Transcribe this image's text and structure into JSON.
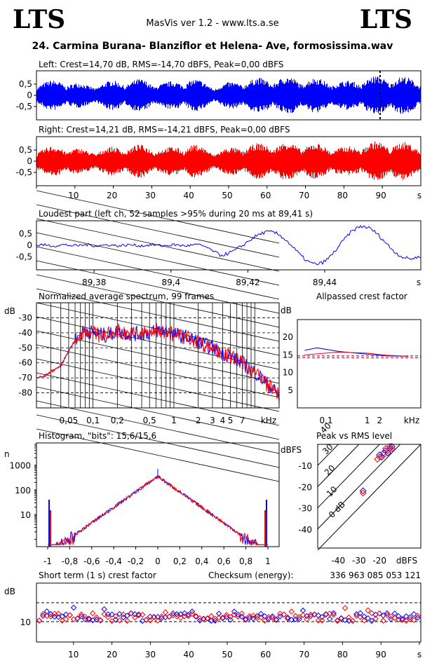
{
  "header": {
    "logo_left": "LTS",
    "logo_right": "LTS",
    "app_title": "MasVis ver 1.2 - www.lts.a.se",
    "file_title": "24. Carmina Burana- Blanziflor et Helena- Ave, formosissima.wav"
  },
  "colors": {
    "left": "#0000ff",
    "right": "#ff0000"
  },
  "chart_data": [
    {
      "id": "left",
      "type": "area",
      "title": "Left: Crest=14,70 dB, RMS=-14,70 dBFS, Peak=0,00 dBFS",
      "yticks": [
        "0,5",
        "0",
        "-0,5"
      ],
      "ylim": [
        -1,
        1
      ],
      "xlim": [
        0,
        100
      ],
      "marker_at_s": 89.41,
      "series": [
        {
          "envelope": [
            0.62,
            0.71,
            0.48,
            0.68,
            0.74,
            0.58,
            0.8,
            0.46,
            0.72,
            0.82,
            0.84,
            0.78,
            0.63,
            0.86,
            0.9,
            0.74
          ]
        }
      ]
    },
    {
      "id": "right",
      "type": "area",
      "title": "Right: Crest=14,21 dB, RMS=-14,21 dBFS, Peak=0,00 dBFS",
      "yticks": [
        "0,5",
        "0",
        "-0,5"
      ],
      "ylim": [
        -1,
        1
      ],
      "xlim": [
        0,
        100
      ],
      "xticks": [
        "10",
        "20",
        "30",
        "40",
        "50",
        "60",
        "70",
        "80",
        "90",
        "s"
      ],
      "series": [
        {
          "envelope": [
            0.6,
            0.72,
            0.5,
            0.66,
            0.76,
            0.6,
            0.82,
            0.48,
            0.74,
            0.84,
            0.86,
            0.8,
            0.64,
            0.88,
            0.92,
            0.76
          ]
        }
      ]
    },
    {
      "id": "loudest",
      "type": "line",
      "title": "Loudest part (left  ch, 52 samples >95% during 20 ms at 89,41 s)",
      "yticks": [
        "0,5",
        "0",
        "-0,5"
      ],
      "ylim": [
        -1,
        1
      ],
      "xlim": [
        89.365,
        89.465
      ],
      "xticks": [
        "89,38",
        "89,4",
        "89,42",
        "89,44",
        "s"
      ],
      "xtick_values": [
        89.38,
        89.4,
        89.42,
        89.44
      ]
    },
    {
      "id": "spectrum",
      "type": "line",
      "title": "Normalized average spectrum, 99 frames",
      "ylabel": "dB",
      "yticks": [
        "-30",
        "-40",
        "-50",
        "-60",
        "-70",
        "-80"
      ],
      "ylim": [
        -90,
        -20
      ],
      "xlim_khz": [
        0.02,
        20
      ],
      "xticks": [
        "0,05",
        "0,1",
        "0,2",
        "0,5",
        "1",
        "2",
        "3",
        "4",
        "5",
        "7"
      ],
      "xtick_values": [
        0.05,
        0.1,
        0.2,
        0.5,
        1,
        2,
        3,
        4,
        5,
        7
      ],
      "xunit": "kHz",
      "series": [
        {
          "x": [
            0.02,
            0.025,
            0.03,
            0.04,
            0.05,
            0.06,
            0.08,
            0.1,
            0.15,
            0.2,
            0.3,
            0.5,
            0.7,
            1,
            1.5,
            2,
            3,
            5,
            7,
            10,
            15,
            20
          ],
          "y": [
            -70,
            -69,
            -66,
            -62,
            -52,
            -45,
            -38,
            -40,
            -42,
            -39,
            -41,
            -40,
            -38,
            -41,
            -43,
            -46,
            -50,
            -56,
            -60,
            -66,
            -75,
            -82
          ]
        }
      ]
    },
    {
      "id": "allpass",
      "type": "line",
      "title": "Allpassed crest factor",
      "ylabel": "dB",
      "yticks": [
        "20",
        "15",
        "10",
        "5"
      ],
      "ylim": [
        0,
        25
      ],
      "xticks": [
        "0,1",
        "1",
        "2",
        "kHz"
      ],
      "series": [
        {
          "name_color": "left",
          "x": [
            0.03,
            0.06,
            0.2,
            1,
            3,
            10
          ],
          "y": [
            16.3,
            17.0,
            16.0,
            15.2,
            14.7,
            14.6
          ]
        },
        {
          "name_color": "right",
          "x": [
            0.03,
            0.06,
            0.2,
            1,
            3,
            10
          ],
          "y": [
            15.0,
            15.3,
            15.8,
            15.5,
            14.9,
            14.6
          ]
        }
      ],
      "ref_levels": [
        14.7,
        14.2
      ]
    },
    {
      "id": "histogram",
      "type": "bar",
      "title": "Histogram, \"bits\": 15,6/15,6",
      "ylabel": "n",
      "yticks": [
        "1000",
        "100",
        "10"
      ],
      "xticks": [
        "-1",
        "-0,8",
        "-0,6",
        "-0,4",
        "-0,2",
        "0",
        "0,2",
        "0,4",
        "0,6",
        "0,8",
        "1"
      ],
      "xtick_values": [
        -1,
        -0.8,
        -0.6,
        -0.4,
        -0.2,
        0,
        0.2,
        0.4,
        0.6,
        0.8,
        1
      ]
    },
    {
      "id": "peak_rms",
      "type": "scatter",
      "title": "Peak vs RMS level",
      "ylabel": "dBFS",
      "yticks": [
        "-10",
        "-20",
        "-30",
        "-40"
      ],
      "xticks": [
        "-40",
        "-30",
        "-20",
        "dBFS"
      ],
      "diag_labels": [
        "40",
        "30",
        "20",
        "10",
        "0 dB"
      ],
      "series": [
        {
          "name_color": "left",
          "points": [
            [
              -20,
              -5
            ],
            [
              -18,
              -4
            ],
            [
              -17,
              -3
            ],
            [
              -15,
              -2
            ],
            [
              -16,
              -4
            ],
            [
              -14,
              -1
            ],
            [
              -19,
              -6
            ],
            [
              -28,
              -22
            ]
          ]
        },
        {
          "name_color": "right",
          "points": [
            [
              -20,
              -6
            ],
            [
              -18,
              -5
            ],
            [
              -16,
              -3
            ],
            [
              -15,
              -1
            ],
            [
              -17,
              -2
            ],
            [
              -14,
              -2
            ],
            [
              -21,
              -7
            ],
            [
              -28,
              -23
            ]
          ]
        }
      ]
    },
    {
      "id": "short_crest",
      "type": "scatter",
      "title": "Short term (1 s) crest factor",
      "checksum_label": "Checksum (energy):",
      "checksum_value": "336 963 085 053 121",
      "ylabel": "dB",
      "yticks": [
        "10"
      ],
      "xticks": [
        "10",
        "20",
        "30",
        "40",
        "50",
        "60",
        "70",
        "80",
        "90",
        "s"
      ]
    }
  ]
}
